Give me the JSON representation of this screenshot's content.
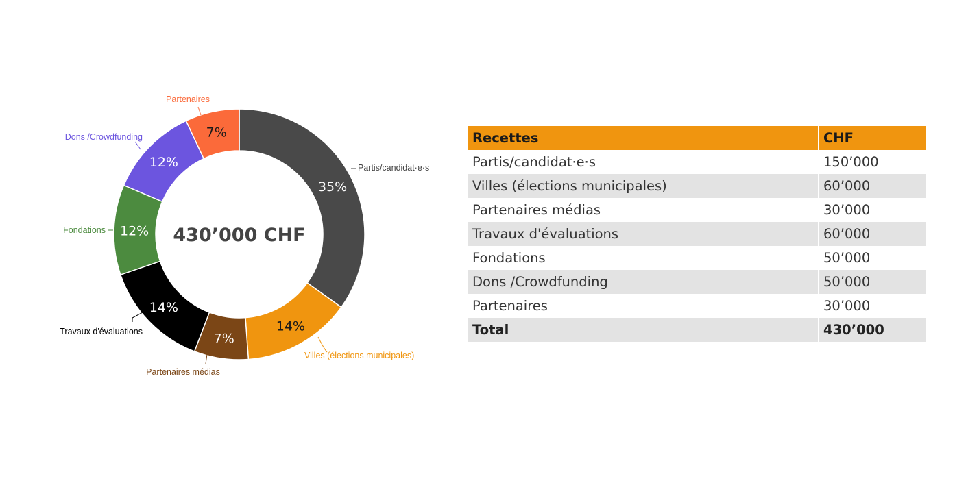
{
  "chart_data": {
    "type": "pie",
    "center_label": "430’000 CHF",
    "slices": [
      {
        "name": "Partis/candidat·e·s",
        "value": 150000,
        "percent_label": "35%",
        "color": "#494949",
        "pct_text_color": "#ffffff",
        "label_color": "#444444"
      },
      {
        "name": "Villes (élections municipales)",
        "value": 60000,
        "percent_label": "14%",
        "color": "#f0950f",
        "pct_text_color": "#1a1a1a",
        "label_color": "#f0950f"
      },
      {
        "name": "Partenaires médias",
        "value": 30000,
        "percent_label": "7%",
        "color": "#7b4616",
        "pct_text_color": "#ffffff",
        "label_color": "#7b4616"
      },
      {
        "name": "Travaux d'évaluations",
        "value": 60000,
        "percent_label": "14%",
        "color": "#000000",
        "pct_text_color": "#ffffff",
        "label_color": "#000000"
      },
      {
        "name": "Fondations",
        "value": 50000,
        "percent_label": "12%",
        "color": "#4c8b3f",
        "pct_text_color": "#ffffff",
        "label_color": "#4c8b3f"
      },
      {
        "name": "Dons /Crowdfunding",
        "value": 50000,
        "percent_label": "12%",
        "color": "#6c55df",
        "pct_text_color": "#ffffff",
        "label_color": "#6c55df"
      },
      {
        "name": "Partenaires",
        "value": 30000,
        "percent_label": "7%",
        "color": "#fb6a3a",
        "pct_text_color": "#1a1a1a",
        "label_color": "#fb6a3a"
      }
    ]
  },
  "table": {
    "headers": [
      "Recettes",
      "CHF"
    ],
    "rows": [
      [
        "Partis/candidat·e·s",
        "150’000"
      ],
      [
        "Villes (élections municipales)",
        "60’000"
      ],
      [
        "Partenaires médias",
        "30’000"
      ],
      [
        "Travaux d'évaluations",
        "60’000"
      ],
      [
        "Fondations",
        "50’000"
      ],
      [
        "Dons /Crowdfunding",
        "50’000"
      ],
      [
        "Partenaires",
        "30’000"
      ]
    ],
    "total": [
      "Total",
      "430’000"
    ],
    "header_color": "#f0950f",
    "stripe_color": "#e3e3e3"
  }
}
